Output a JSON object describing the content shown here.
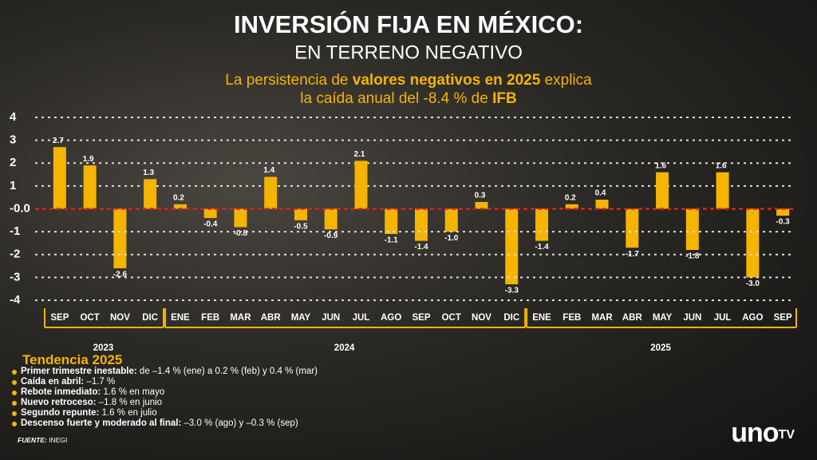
{
  "chart_data": {
    "type": "bar",
    "title": "INVERSIÓN FIJA EN MÉXICO:",
    "subtitle": "EN TERRENO NEGATIVO",
    "caption": [
      "La persistencia de ",
      "valores negativos en 2025",
      " explica",
      "la caída anual del -8.4 % de ",
      "IFB"
    ],
    "categories": [
      "SEP",
      "OCT",
      "NOV",
      "DIC",
      "ENE",
      "FEB",
      "MAR",
      "ABR",
      "MAY",
      "JUN",
      "JUL",
      "AGO",
      "SEP",
      "OCT",
      "NOV",
      "DIC",
      "ENE",
      "FEB",
      "MAR",
      "ABR",
      "MAY",
      "JUN",
      "JUL",
      "AGO",
      "SEP"
    ],
    "years": [
      "2023",
      "2024",
      "2025"
    ],
    "values": [
      2.7,
      1.9,
      -2.6,
      1.3,
      0.2,
      -0.4,
      -0.8,
      1.4,
      -0.5,
      -0.9,
      2.1,
      -1.1,
      -1.4,
      -1.0,
      0.3,
      -3.3,
      -1.4,
      0.2,
      0.4,
      -1.7,
      1.6,
      -1.8,
      1.6,
      -3.0,
      -0.3
    ],
    "value_labels": [
      "2.7",
      "1.9",
      "-2.6",
      "1.3",
      "0.2",
      "-0.4",
      "-0.8",
      "1.4",
      "-0.5",
      "-0.9",
      "2.1",
      "-1.1",
      "-1.4",
      "-1.0",
      "0.3",
      "-3.3",
      "-1.4",
      "0.2",
      "0.4",
      "-1.7",
      "1.6",
      "-1.8",
      "1.6",
      "-3.0",
      "-0.3"
    ],
    "color": "#f5b400",
    "ylim": [
      -4,
      4
    ],
    "yticks": [
      4,
      3,
      2,
      1,
      {
        "value": 0,
        "label": "-0.0"
      },
      -1,
      -2,
      -3,
      -4
    ],
    "grid": true,
    "zero_line_color": "#e0201a"
  },
  "notes": {
    "title": "Tendencia 2025",
    "items": [
      {
        "label": "Primer trimestre inestable:",
        "text": " de –1.4 % (ene) a 0.2 % (feb) y 0.4 % (mar)"
      },
      {
        "label": "Caída en abril:",
        "text": " –1.7 %"
      },
      {
        "label": "Rebote inmediato:",
        "text": " 1.6 % en mayo"
      },
      {
        "label": "Nuevo retroceso:",
        "text": " –1.8 % en junio"
      },
      {
        "label": "Segundo repunte:",
        "text": " 1.6 % en julio"
      },
      {
        "label": "Descenso fuerte y moderado al final:",
        "text": " –3.0 % (ago) y –0.3 % (sep)"
      }
    ]
  },
  "source": {
    "label": "FUENTE:",
    "text": "INEGI"
  },
  "logo": [
    "uno",
    "TV"
  ]
}
